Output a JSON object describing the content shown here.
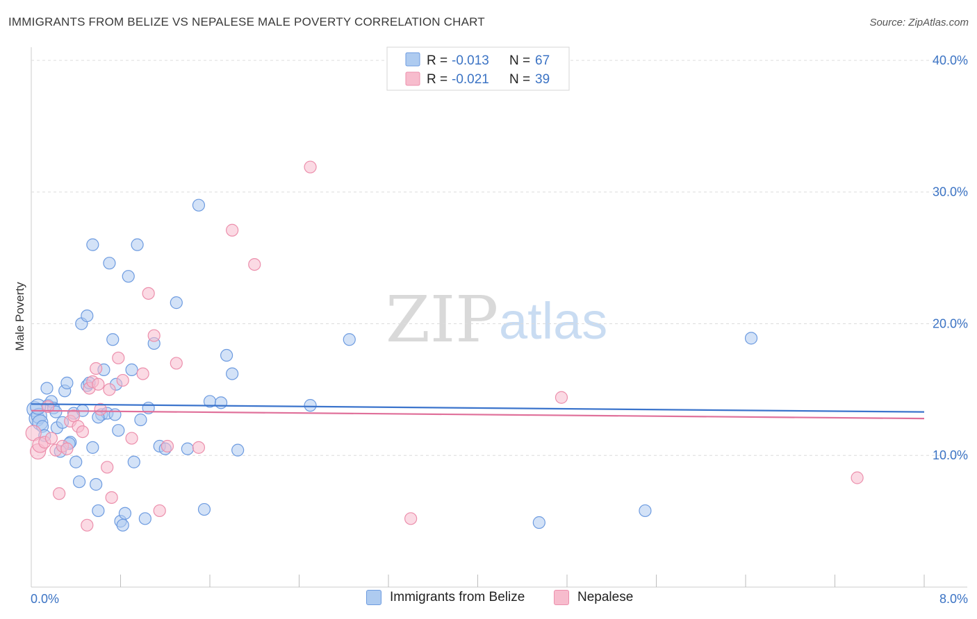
{
  "title": "IMMIGRANTS FROM BELIZE VS NEPALESE MALE POVERTY CORRELATION CHART",
  "source": "Source: ZipAtlas.com",
  "watermark": {
    "zip": "ZIP",
    "atlas": "atlas"
  },
  "colors": {
    "belize_fill": "#aecbf0",
    "belize_stroke": "#6d9be0",
    "belize_line": "#3b74cc",
    "nepalese_fill": "#f7bccd",
    "nepalese_stroke": "#ec8fac",
    "nepalese_line": "#e0709a",
    "tick": "#3b73c4",
    "grid": "#dcdcdc"
  },
  "stats_legend": {
    "rows": [
      {
        "r_label": "R =",
        "r_value": "-0.013",
        "n_label": "N =",
        "n_value": "67"
      },
      {
        "r_label": "R =",
        "r_value": "-0.021",
        "n_label": "N =",
        "n_value": "39"
      }
    ]
  },
  "chart_data": {
    "type": "scatter",
    "title": "IMMIGRANTS FROM BELIZE VS NEPALESE MALE POVERTY CORRELATION CHART",
    "xlabel": "",
    "ylabel": "Male Poverty",
    "xlim": [
      0,
      8
    ],
    "ylim": [
      0,
      41
    ],
    "x_tick_labels": [
      "0.0%",
      "8.0%"
    ],
    "y_ticks": [
      10,
      20,
      30,
      40
    ],
    "y_tick_labels": [
      "10.0%",
      "20.0%",
      "30.0%",
      "40.0%"
    ],
    "legend_position": "top-center",
    "series": [
      {
        "name": "Immigrants from Belize",
        "r": -0.013,
        "n": 67,
        "trend": {
          "x0": 0,
          "y0": 13.9,
          "x1": 8,
          "y1": 13.3
        },
        "points": [
          [
            0.03,
            13.5
          ],
          [
            0.05,
            12.8
          ],
          [
            0.07,
            13.0
          ],
          [
            0.08,
            12.5
          ],
          [
            0.1,
            12.2
          ],
          [
            0.12,
            11.5
          ],
          [
            0.15,
            13.8
          ],
          [
            0.18,
            14.1
          ],
          [
            0.2,
            13.6
          ],
          [
            0.23,
            12.1
          ],
          [
            0.26,
            10.3
          ],
          [
            0.28,
            12.5
          ],
          [
            0.3,
            14.9
          ],
          [
            0.32,
            15.5
          ],
          [
            0.35,
            11.0
          ],
          [
            0.38,
            13.2
          ],
          [
            0.4,
            9.5
          ],
          [
            0.43,
            8.0
          ],
          [
            0.46,
            13.4
          ],
          [
            0.5,
            15.3
          ],
          [
            0.52,
            15.5
          ],
          [
            0.55,
            10.6
          ],
          [
            0.58,
            7.8
          ],
          [
            0.6,
            5.8
          ],
          [
            0.63,
            13.1
          ],
          [
            0.68,
            13.2
          ],
          [
            0.7,
            24.6
          ],
          [
            0.73,
            18.8
          ],
          [
            0.76,
            15.4
          ],
          [
            0.78,
            11.9
          ],
          [
            0.8,
            5.0
          ],
          [
            0.82,
            4.7
          ],
          [
            0.84,
            5.6
          ],
          [
            0.87,
            23.6
          ],
          [
            0.9,
            16.5
          ],
          [
            0.92,
            9.5
          ],
          [
            0.95,
            26.0
          ],
          [
            0.98,
            12.7
          ],
          [
            1.02,
            5.2
          ],
          [
            1.05,
            13.6
          ],
          [
            1.1,
            18.5
          ],
          [
            1.15,
            10.7
          ],
          [
            1.2,
            10.5
          ],
          [
            1.5,
            29.0
          ],
          [
            1.6,
            14.1
          ],
          [
            1.8,
            16.2
          ],
          [
            1.85,
            10.4
          ],
          [
            2.5,
            13.8
          ],
          [
            2.85,
            18.8
          ],
          [
            4.55,
            4.9
          ],
          [
            5.5,
            5.8
          ],
          [
            6.45,
            18.9
          ],
          [
            0.06,
            13.7
          ],
          [
            0.14,
            15.1
          ],
          [
            0.22,
            13.3
          ],
          [
            0.34,
            10.9
          ],
          [
            0.45,
            20.0
          ],
          [
            0.5,
            20.6
          ],
          [
            0.6,
            12.9
          ],
          [
            0.75,
            13.1
          ],
          [
            1.3,
            21.6
          ],
          [
            1.4,
            10.5
          ],
          [
            1.55,
            5.9
          ],
          [
            1.7,
            14.0
          ],
          [
            1.75,
            17.6
          ],
          [
            0.65,
            16.5
          ],
          [
            0.55,
            26.0
          ]
        ]
      },
      {
        "name": "Nepalese",
        "r": -0.021,
        "n": 39,
        "trend": {
          "x0": 0,
          "y0": 13.4,
          "x1": 8,
          "y1": 12.8
        },
        "points": [
          [
            0.02,
            11.7
          ],
          [
            0.06,
            10.3
          ],
          [
            0.08,
            10.8
          ],
          [
            0.12,
            11.0
          ],
          [
            0.15,
            13.7
          ],
          [
            0.18,
            11.3
          ],
          [
            0.22,
            10.4
          ],
          [
            0.25,
            7.1
          ],
          [
            0.28,
            10.7
          ],
          [
            0.32,
            10.5
          ],
          [
            0.35,
            12.6
          ],
          [
            0.38,
            13.0
          ],
          [
            0.42,
            12.2
          ],
          [
            0.46,
            11.8
          ],
          [
            0.5,
            4.7
          ],
          [
            0.52,
            15.1
          ],
          [
            0.55,
            15.6
          ],
          [
            0.58,
            16.6
          ],
          [
            0.62,
            13.5
          ],
          [
            0.68,
            9.1
          ],
          [
            0.7,
            15.0
          ],
          [
            0.72,
            6.8
          ],
          [
            0.78,
            17.4
          ],
          [
            0.82,
            15.7
          ],
          [
            0.9,
            11.3
          ],
          [
            1.0,
            16.2
          ],
          [
            1.05,
            22.3
          ],
          [
            1.1,
            19.1
          ],
          [
            1.15,
            5.8
          ],
          [
            1.22,
            10.7
          ],
          [
            1.3,
            17.0
          ],
          [
            1.5,
            10.6
          ],
          [
            1.8,
            27.1
          ],
          [
            2.0,
            24.5
          ],
          [
            2.5,
            31.9
          ],
          [
            3.4,
            5.2
          ],
          [
            4.75,
            14.4
          ],
          [
            7.4,
            8.3
          ],
          [
            0.6,
            15.4
          ]
        ]
      }
    ]
  },
  "bottom_legend": {
    "items": [
      {
        "label": "Immigrants from Belize"
      },
      {
        "label": "Nepalese"
      }
    ]
  }
}
